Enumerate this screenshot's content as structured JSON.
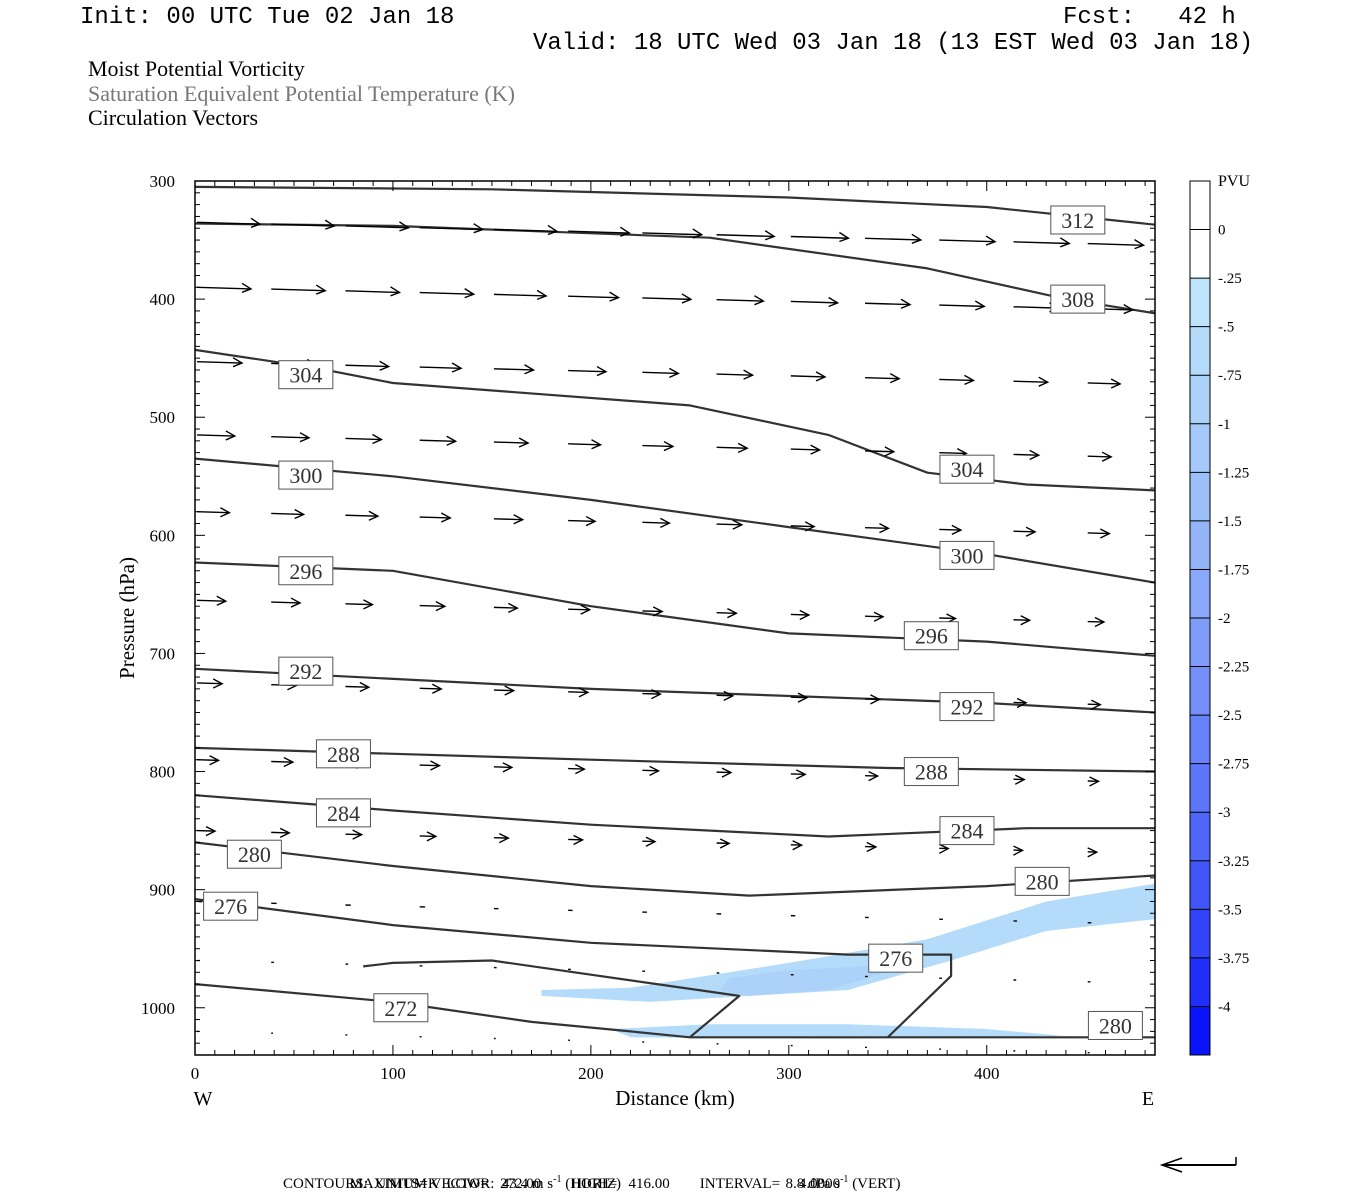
{
  "header": {
    "init": "Init: 00 UTC Tue 02 Jan 18",
    "fcst": "Fcst:   42 h",
    "valid": "Valid: 18 UTC Wed 03 Jan 18 (13 EST Wed 03 Jan 18)",
    "field1": "Moist Potential Vorticity",
    "field2": "Saturation Equivalent Potential Temperature (K)",
    "field3": "Circulation Vectors"
  },
  "footer": {
    "line1_a": "MAXIMUM VECTOR:  43.4 m s",
    "line1_b": "-1",
    "line1_c": " (HORIZ)",
    "line1_d": "8.8 dPa s",
    "line1_e": "-1",
    "line1_f": " (VERT)",
    "line2": "CONTOURS:  UNITS=K  LOW=   272.00        HIGH=   416.00        INTERVAL=     4.0000"
  },
  "colors": {
    "contour": "#333333",
    "frame": "#000000",
    "shade_light": "#bde4fb",
    "shade_mid": "#a8c8f8"
  },
  "chart_data": {
    "type": "cross-section",
    "xlabel": "Distance (km)",
    "ylabel": "Pressure (hPa)",
    "x_west": "W",
    "x_east": "E",
    "xlim": [
      0,
      485
    ],
    "ylim": [
      300,
      1040
    ],
    "x_ticks": [
      0,
      100,
      200,
      300,
      400
    ],
    "y_ticks": [
      300,
      400,
      500,
      600,
      700,
      800,
      900,
      1000
    ],
    "colorbar": {
      "title": "PVU",
      "labels": [
        "0",
        "-.25",
        "-.5",
        "-.75",
        "-1",
        "-1.25",
        "-1.5",
        "-1.75",
        "-2",
        "-2.25",
        "-2.5",
        "-2.75",
        "-3",
        "-3.25",
        "-3.5",
        "-3.75",
        "-4"
      ],
      "colors": [
        "#ffffff",
        "#ffffff",
        "#bde4fb",
        "#b4dcfa",
        "#acd2fa",
        "#a4c8f9",
        "#9cbef9",
        "#94b4f9",
        "#8aa8f9",
        "#7f9cf9",
        "#748ff9",
        "#6882f9",
        "#5c75f9",
        "#4f66f9",
        "#4155f9",
        "#3244f9",
        "#1f2ef9",
        "#0a14fa"
      ]
    },
    "contours": [
      {
        "label": "312",
        "points": [
          [
            0,
            305
          ],
          [
            150,
            307
          ],
          [
            300,
            314
          ],
          [
            400,
            322
          ],
          [
            485,
            337
          ]
        ],
        "label_at": [
          446,
          333
        ]
      },
      {
        "label": "308",
        "points": [
          [
            0,
            336
          ],
          [
            100,
            338
          ],
          [
            260,
            348
          ],
          [
            370,
            374
          ],
          [
            440,
            400
          ],
          [
            485,
            412
          ]
        ],
        "label_at": [
          446,
          400
        ]
      },
      {
        "label": "304",
        "points": [
          [
            0,
            443
          ],
          [
            60,
            458
          ],
          [
            100,
            471
          ],
          [
            250,
            490
          ],
          [
            320,
            515
          ],
          [
            370,
            547
          ],
          [
            420,
            557
          ],
          [
            485,
            562
          ]
        ],
        "label_at": [
          56,
          464
        ]
      },
      {
        "label": "304",
        "points": [],
        "label_at": [
          390,
          544
        ]
      },
      {
        "label": "300",
        "points": [
          [
            0,
            535
          ],
          [
            100,
            550
          ],
          [
            200,
            570
          ],
          [
            300,
            593
          ],
          [
            400,
            616
          ],
          [
            485,
            640
          ]
        ],
        "label_at": [
          56,
          549
        ]
      },
      {
        "label": "300",
        "points": [],
        "label_at": [
          390,
          617
        ]
      },
      {
        "label": "296",
        "points": [
          [
            0,
            623
          ],
          [
            100,
            630
          ],
          [
            200,
            660
          ],
          [
            300,
            683
          ],
          [
            400,
            690
          ],
          [
            485,
            702
          ]
        ],
        "label_at": [
          56,
          630
        ]
      },
      {
        "label": "296",
        "points": [],
        "label_at": [
          372,
          685
        ]
      },
      {
        "label": "292",
        "points": [
          [
            0,
            713
          ],
          [
            200,
            730
          ],
          [
            400,
            742
          ],
          [
            485,
            750
          ]
        ],
        "label_at": [
          56,
          715
        ]
      },
      {
        "label": "292",
        "points": [],
        "label_at": [
          390,
          745
        ]
      },
      {
        "label": "288",
        "points": [
          [
            0,
            780
          ],
          [
            200,
            790
          ],
          [
            350,
            797
          ],
          [
            485,
            800
          ]
        ],
        "label_at": [
          75,
          785
        ]
      },
      {
        "label": "288",
        "points": [],
        "label_at": [
          372,
          800
        ]
      },
      {
        "label": "284",
        "points": [
          [
            0,
            820
          ],
          [
            100,
            833
          ],
          [
            200,
            845
          ],
          [
            320,
            855
          ],
          [
            420,
            848
          ],
          [
            485,
            848
          ]
        ],
        "label_at": [
          75,
          835
        ]
      },
      {
        "label": "284",
        "points": [],
        "label_at": [
          390,
          850
        ]
      },
      {
        "label": "280",
        "points": [
          [
            0,
            860
          ],
          [
            100,
            880
          ],
          [
            200,
            897
          ],
          [
            280,
            905
          ],
          [
            400,
            897
          ],
          [
            485,
            888
          ]
        ],
        "label_at": [
          30,
          870
        ]
      },
      {
        "label": "280",
        "points": [],
        "label_at": [
          428,
          893
        ]
      },
      {
        "label": "276",
        "points": [
          [
            0,
            908
          ],
          [
            100,
            930
          ],
          [
            200,
            945
          ],
          [
            330,
            955
          ],
          [
            382,
            955
          ],
          [
            382,
            973
          ],
          [
            350,
            1025
          ]
        ],
        "label_at": [
          18,
          914
        ]
      },
      {
        "label": "276",
        "points": [],
        "label_at": [
          354,
          958
        ]
      },
      {
        "label": "272",
        "points": [
          [
            0,
            980
          ],
          [
            100,
            995
          ],
          [
            170,
            1012
          ],
          [
            220,
            1020
          ],
          [
            250,
            1025
          ],
          [
            485,
            1025
          ]
        ],
        "label_at": [
          104,
          1000
        ]
      },
      {
        "label": "280",
        "points": [],
        "label_at": [
          465,
          1015
        ]
      },
      {
        "label": "",
        "points": [
          [
            85,
            965
          ],
          [
            100,
            962
          ],
          [
            150,
            960
          ],
          [
            200,
            972
          ],
          [
            275,
            990
          ],
          [
            250,
            1025
          ]
        ],
        "label_at": [
          0,
          0
        ]
      }
    ],
    "vectors_rows": [
      {
        "p": 335,
        "u": [
          70,
          70,
          70,
          70,
          70,
          68,
          66,
          64,
          64,
          62,
          62,
          62,
          62
        ]
      },
      {
        "p": 390,
        "u": [
          60,
          60,
          60,
          60,
          58,
          56,
          54,
          52,
          52,
          50,
          50,
          50,
          50
        ]
      },
      {
        "p": 453,
        "u": [
          50,
          50,
          48,
          46,
          44,
          42,
          40,
          40,
          38,
          38,
          38,
          38,
          36
        ]
      },
      {
        "p": 515,
        "u": [
          42,
          42,
          40,
          40,
          38,
          36,
          34,
          34,
          32,
          32,
          30,
          28,
          26
        ]
      },
      {
        "p": 580,
        "u": [
          36,
          36,
          36,
          34,
          32,
          30,
          30,
          28,
          26,
          26,
          24,
          24,
          24
        ]
      },
      {
        "p": 655,
        "u": [
          32,
          32,
          30,
          28,
          26,
          24,
          22,
          22,
          20,
          20,
          18,
          18,
          18
        ]
      },
      {
        "p": 725,
        "u": [
          28,
          28,
          26,
          24,
          22,
          22,
          20,
          18,
          18,
          16,
          16,
          14,
          14
        ]
      },
      {
        "p": 790,
        "u": [
          24,
          24,
          22,
          22,
          20,
          18,
          18,
          16,
          16,
          14,
          14,
          12,
          12
        ]
      },
      {
        "p": 850,
        "u": [
          20,
          20,
          18,
          18,
          16,
          16,
          14,
          14,
          12,
          12,
          10,
          10,
          10
        ]
      },
      {
        "p": 910,
        "u": [
          6,
          6,
          6,
          6,
          5,
          5,
          5,
          5,
          5,
          4,
          4,
          4,
          4
        ]
      },
      {
        "p": 960,
        "u": [
          3,
          3,
          3,
          3,
          3,
          3,
          3,
          3,
          3,
          3,
          3,
          3,
          3
        ]
      },
      {
        "p": 1020,
        "u": [
          2,
          2,
          2,
          2,
          2,
          2,
          2,
          2,
          2,
          2,
          2,
          2,
          2
        ]
      }
    ],
    "shaded_regions": [
      {
        "value": "-.5",
        "points": [
          [
            175,
            985
          ],
          [
            220,
            983
          ],
          [
            300,
            962
          ],
          [
            370,
            942
          ],
          [
            430,
            910
          ],
          [
            485,
            895
          ],
          [
            485,
            925
          ],
          [
            430,
            935
          ],
          [
            382,
            960
          ],
          [
            330,
            985
          ],
          [
            280,
            990
          ],
          [
            230,
            995
          ],
          [
            175,
            990
          ]
        ]
      },
      {
        "value": "-.75",
        "points": [
          [
            270,
            975
          ],
          [
            300,
            968
          ],
          [
            340,
            965
          ],
          [
            350,
            970
          ],
          [
            320,
            985
          ],
          [
            280,
            990
          ],
          [
            265,
            985
          ]
        ]
      },
      {
        "value": "-.5",
        "points": [
          [
            210,
            1018
          ],
          [
            260,
            1014
          ],
          [
            330,
            1014
          ],
          [
            400,
            1018
          ],
          [
            440,
            1024
          ],
          [
            330,
            1026
          ],
          [
            220,
            1025
          ]
        ]
      }
    ]
  }
}
